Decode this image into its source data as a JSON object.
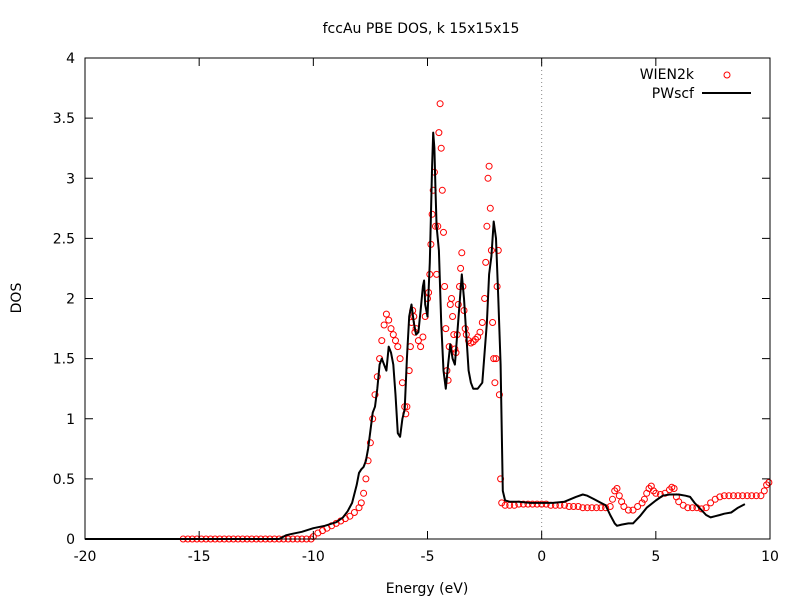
{
  "chart_data": {
    "type": "line",
    "title": "fccAu PBE DOS, k 15x15x15",
    "xlabel": "Energy (eV)",
    "ylabel": "DOS",
    "xlim": [
      -20,
      10
    ],
    "ylim": [
      0,
      4
    ],
    "xticks": [
      -20,
      -15,
      -10,
      -5,
      0,
      5,
      10
    ],
    "yticks": [
      0,
      0.5,
      1,
      1.5,
      2,
      2.5,
      3,
      3.5,
      4
    ],
    "xtick_labels": [
      "-20",
      "-15",
      "-10",
      "-5",
      "0",
      "5",
      "10"
    ],
    "ytick_labels": [
      "0",
      "0.5",
      "1",
      "1.5",
      "2",
      "2.5",
      "3",
      "3.5",
      "4"
    ],
    "grid": false,
    "fermi_level_line_x": 0,
    "legend_position": "top-right",
    "series": [
      {
        "name": "WIEN2k",
        "style": "points",
        "marker": "open-circle",
        "color": "#ff0000",
        "points": [
          [
            -15.7,
            0.0
          ],
          [
            -15.5,
            0.0
          ],
          [
            -15.3,
            0.0
          ],
          [
            -15.1,
            0.0
          ],
          [
            -14.9,
            0.0
          ],
          [
            -14.7,
            0.0
          ],
          [
            -14.5,
            0.0
          ],
          [
            -14.3,
            0.0
          ],
          [
            -14.1,
            0.0
          ],
          [
            -13.9,
            0.0
          ],
          [
            -13.7,
            0.0
          ],
          [
            -13.5,
            0.0
          ],
          [
            -13.3,
            0.0
          ],
          [
            -13.1,
            0.0
          ],
          [
            -12.9,
            0.0
          ],
          [
            -12.7,
            0.0
          ],
          [
            -12.5,
            0.0
          ],
          [
            -12.3,
            0.0
          ],
          [
            -12.1,
            0.0
          ],
          [
            -11.9,
            0.0
          ],
          [
            -11.7,
            0.0
          ],
          [
            -11.5,
            0.0
          ],
          [
            -11.3,
            0.0
          ],
          [
            -11.1,
            0.0
          ],
          [
            -10.9,
            0.0
          ],
          [
            -10.7,
            0.0
          ],
          [
            -10.5,
            0.0
          ],
          [
            -10.3,
            0.0
          ],
          [
            -10.1,
            0.0
          ],
          [
            -10.0,
            0.02
          ],
          [
            -9.8,
            0.05
          ],
          [
            -9.6,
            0.07
          ],
          [
            -9.4,
            0.09
          ],
          [
            -9.2,
            0.11
          ],
          [
            -9.0,
            0.13
          ],
          [
            -8.8,
            0.15
          ],
          [
            -8.6,
            0.17
          ],
          [
            -8.4,
            0.19
          ],
          [
            -8.2,
            0.22
          ],
          [
            -8.0,
            0.26
          ],
          [
            -7.9,
            0.3
          ],
          [
            -7.8,
            0.38
          ],
          [
            -7.7,
            0.5
          ],
          [
            -7.6,
            0.65
          ],
          [
            -7.5,
            0.8
          ],
          [
            -7.4,
            1.0
          ],
          [
            -7.3,
            1.2
          ],
          [
            -7.2,
            1.35
          ],
          [
            -7.1,
            1.5
          ],
          [
            -7.0,
            1.65
          ],
          [
            -6.9,
            1.78
          ],
          [
            -6.8,
            1.87
          ],
          [
            -6.7,
            1.82
          ],
          [
            -6.6,
            1.75
          ],
          [
            -6.5,
            1.7
          ],
          [
            -6.4,
            1.65
          ],
          [
            -6.3,
            1.6
          ],
          [
            -6.2,
            1.5
          ],
          [
            -6.1,
            1.3
          ],
          [
            -6.0,
            1.1
          ],
          [
            -5.95,
            1.04
          ],
          [
            -5.9,
            1.1
          ],
          [
            -5.8,
            1.4
          ],
          [
            -5.75,
            1.6
          ],
          [
            -5.7,
            1.8
          ],
          [
            -5.65,
            1.9
          ],
          [
            -5.6,
            1.85
          ],
          [
            -5.55,
            1.72
          ],
          [
            -5.5,
            1.75
          ],
          [
            -5.4,
            1.65
          ],
          [
            -5.3,
            1.6
          ],
          [
            -5.2,
            1.68
          ],
          [
            -5.1,
            1.85
          ],
          [
            -5.0,
            2.0
          ],
          [
            -4.95,
            2.05
          ],
          [
            -4.9,
            2.2
          ],
          [
            -4.85,
            2.45
          ],
          [
            -4.8,
            2.7
          ],
          [
            -4.75,
            2.9
          ],
          [
            -4.7,
            3.05
          ],
          [
            -4.65,
            2.6
          ],
          [
            -4.6,
            2.2
          ],
          [
            -4.55,
            2.6
          ],
          [
            -4.5,
            3.38
          ],
          [
            -4.45,
            3.62
          ],
          [
            -4.4,
            3.25
          ],
          [
            -4.35,
            2.9
          ],
          [
            -4.3,
            2.55
          ],
          [
            -4.25,
            2.1
          ],
          [
            -4.2,
            1.75
          ],
          [
            -4.15,
            1.4
          ],
          [
            -4.1,
            1.32
          ],
          [
            -4.05,
            1.6
          ],
          [
            -4.0,
            1.95
          ],
          [
            -3.95,
            2.0
          ],
          [
            -3.9,
            1.85
          ],
          [
            -3.85,
            1.7
          ],
          [
            -3.8,
            1.58
          ],
          [
            -3.75,
            1.55
          ],
          [
            -3.7,
            1.7
          ],
          [
            -3.65,
            1.95
          ],
          [
            -3.6,
            2.1
          ],
          [
            -3.55,
            2.25
          ],
          [
            -3.5,
            2.38
          ],
          [
            -3.45,
            2.1
          ],
          [
            -3.4,
            1.9
          ],
          [
            -3.35,
            1.75
          ],
          [
            -3.3,
            1.7
          ],
          [
            -3.2,
            1.65
          ],
          [
            -3.1,
            1.63
          ],
          [
            -3.0,
            1.64
          ],
          [
            -2.9,
            1.66
          ],
          [
            -2.8,
            1.68
          ],
          [
            -2.7,
            1.72
          ],
          [
            -2.6,
            1.8
          ],
          [
            -2.5,
            2.0
          ],
          [
            -2.45,
            2.3
          ],
          [
            -2.4,
            2.6
          ],
          [
            -2.35,
            3.0
          ],
          [
            -2.3,
            3.1
          ],
          [
            -2.25,
            2.75
          ],
          [
            -2.2,
            2.4
          ],
          [
            -2.15,
            1.8
          ],
          [
            -2.1,
            1.5
          ],
          [
            -2.05,
            1.3
          ],
          [
            -2.0,
            1.5
          ],
          [
            -1.95,
            2.1
          ],
          [
            -1.9,
            2.4
          ],
          [
            -1.85,
            1.2
          ],
          [
            -1.8,
            0.5
          ],
          [
            -1.75,
            0.3
          ],
          [
            -1.6,
            0.28
          ],
          [
            -1.4,
            0.28
          ],
          [
            -1.2,
            0.28
          ],
          [
            -1.0,
            0.29
          ],
          [
            -0.8,
            0.29
          ],
          [
            -0.6,
            0.29
          ],
          [
            -0.4,
            0.29
          ],
          [
            -0.2,
            0.29
          ],
          [
            0.0,
            0.29
          ],
          [
            0.2,
            0.29
          ],
          [
            0.4,
            0.28
          ],
          [
            0.6,
            0.28
          ],
          [
            0.8,
            0.28
          ],
          [
            1.0,
            0.28
          ],
          [
            1.2,
            0.27
          ],
          [
            1.4,
            0.27
          ],
          [
            1.6,
            0.27
          ],
          [
            1.8,
            0.26
          ],
          [
            2.0,
            0.26
          ],
          [
            2.2,
            0.26
          ],
          [
            2.4,
            0.26
          ],
          [
            2.6,
            0.26
          ],
          [
            2.8,
            0.26
          ],
          [
            3.0,
            0.27
          ],
          [
            3.1,
            0.33
          ],
          [
            3.2,
            0.4
          ],
          [
            3.3,
            0.42
          ],
          [
            3.4,
            0.36
          ],
          [
            3.5,
            0.31
          ],
          [
            3.6,
            0.27
          ],
          [
            3.8,
            0.24
          ],
          [
            4.0,
            0.24
          ],
          [
            4.2,
            0.27
          ],
          [
            4.4,
            0.3
          ],
          [
            4.5,
            0.33
          ],
          [
            4.6,
            0.38
          ],
          [
            4.7,
            0.42
          ],
          [
            4.8,
            0.44
          ],
          [
            4.9,
            0.4
          ],
          [
            5.0,
            0.38
          ],
          [
            5.2,
            0.37
          ],
          [
            5.4,
            0.38
          ],
          [
            5.6,
            0.41
          ],
          [
            5.7,
            0.43
          ],
          [
            5.8,
            0.42
          ],
          [
            5.9,
            0.35
          ],
          [
            6.0,
            0.31
          ],
          [
            6.2,
            0.28
          ],
          [
            6.4,
            0.26
          ],
          [
            6.6,
            0.26
          ],
          [
            6.8,
            0.26
          ],
          [
            7.0,
            0.25
          ],
          [
            7.2,
            0.26
          ],
          [
            7.4,
            0.3
          ],
          [
            7.6,
            0.33
          ],
          [
            7.8,
            0.35
          ],
          [
            8.0,
            0.36
          ],
          [
            8.2,
            0.36
          ],
          [
            8.4,
            0.36
          ],
          [
            8.6,
            0.36
          ],
          [
            8.8,
            0.36
          ],
          [
            9.0,
            0.36
          ],
          [
            9.2,
            0.36
          ],
          [
            9.4,
            0.36
          ],
          [
            9.6,
            0.36
          ],
          [
            9.75,
            0.4
          ],
          [
            9.85,
            0.45
          ],
          [
            9.95,
            0.47
          ]
        ]
      },
      {
        "name": "PWscf",
        "style": "line",
        "color": "#000000",
        "points": [
          [
            -20.0,
            0.0
          ],
          [
            -15.0,
            0.0
          ],
          [
            -12.0,
            0.0
          ],
          [
            -11.5,
            0.0
          ],
          [
            -11.2,
            0.03
          ],
          [
            -11.0,
            0.04
          ],
          [
            -10.5,
            0.06
          ],
          [
            -10.0,
            0.09
          ],
          [
            -9.5,
            0.11
          ],
          [
            -9.0,
            0.14
          ],
          [
            -8.7,
            0.18
          ],
          [
            -8.5,
            0.23
          ],
          [
            -8.3,
            0.3
          ],
          [
            -8.1,
            0.45
          ],
          [
            -8.0,
            0.55
          ],
          [
            -7.9,
            0.58
          ],
          [
            -7.8,
            0.6
          ],
          [
            -7.7,
            0.65
          ],
          [
            -7.6,
            0.75
          ],
          [
            -7.5,
            0.9
          ],
          [
            -7.4,
            1.05
          ],
          [
            -7.3,
            1.1
          ],
          [
            -7.2,
            1.25
          ],
          [
            -7.1,
            1.45
          ],
          [
            -7.0,
            1.5
          ],
          [
            -6.9,
            1.45
          ],
          [
            -6.8,
            1.4
          ],
          [
            -6.7,
            1.6
          ],
          [
            -6.6,
            1.55
          ],
          [
            -6.5,
            1.45
          ],
          [
            -6.4,
            1.2
          ],
          [
            -6.3,
            0.88
          ],
          [
            -6.2,
            0.85
          ],
          [
            -6.1,
            1.0
          ],
          [
            -6.0,
            1.08
          ],
          [
            -5.9,
            1.5
          ],
          [
            -5.8,
            1.85
          ],
          [
            -5.7,
            1.95
          ],
          [
            -5.6,
            1.8
          ],
          [
            -5.5,
            1.7
          ],
          [
            -5.4,
            1.72
          ],
          [
            -5.3,
            1.9
          ],
          [
            -5.2,
            2.1
          ],
          [
            -5.15,
            2.15
          ],
          [
            -5.1,
            1.95
          ],
          [
            -5.0,
            1.85
          ],
          [
            -4.9,
            2.3
          ],
          [
            -4.8,
            3.1
          ],
          [
            -4.75,
            3.38
          ],
          [
            -4.7,
            3.25
          ],
          [
            -4.65,
            2.9
          ],
          [
            -4.6,
            2.6
          ],
          [
            -4.5,
            2.4
          ],
          [
            -4.4,
            1.8
          ],
          [
            -4.3,
            1.4
          ],
          [
            -4.2,
            1.25
          ],
          [
            -4.1,
            1.45
          ],
          [
            -4.0,
            1.62
          ],
          [
            -3.9,
            1.5
          ],
          [
            -3.8,
            1.45
          ],
          [
            -3.7,
            1.7
          ],
          [
            -3.6,
            1.95
          ],
          [
            -3.5,
            2.2
          ],
          [
            -3.4,
            2.0
          ],
          [
            -3.3,
            1.7
          ],
          [
            -3.2,
            1.4
          ],
          [
            -3.1,
            1.3
          ],
          [
            -3.0,
            1.25
          ],
          [
            -2.8,
            1.25
          ],
          [
            -2.6,
            1.3
          ],
          [
            -2.5,
            1.55
          ],
          [
            -2.4,
            1.8
          ],
          [
            -2.3,
            2.2
          ],
          [
            -2.2,
            2.35
          ],
          [
            -2.1,
            2.64
          ],
          [
            -2.0,
            2.5
          ],
          [
            -1.9,
            2.0
          ],
          [
            -1.8,
            1.45
          ],
          [
            -1.7,
            0.4
          ],
          [
            -1.6,
            0.32
          ],
          [
            -1.4,
            0.31
          ],
          [
            -1.0,
            0.31
          ],
          [
            -0.5,
            0.3
          ],
          [
            0.0,
            0.3
          ],
          [
            0.5,
            0.3
          ],
          [
            1.0,
            0.31
          ],
          [
            1.5,
            0.35
          ],
          [
            1.8,
            0.37
          ],
          [
            2.0,
            0.36
          ],
          [
            2.3,
            0.33
          ],
          [
            2.6,
            0.3
          ],
          [
            2.8,
            0.28
          ],
          [
            3.0,
            0.2
          ],
          [
            3.2,
            0.13
          ],
          [
            3.3,
            0.11
          ],
          [
            3.5,
            0.12
          ],
          [
            3.8,
            0.13
          ],
          [
            4.0,
            0.13
          ],
          [
            4.3,
            0.19
          ],
          [
            4.6,
            0.26
          ],
          [
            5.0,
            0.32
          ],
          [
            5.3,
            0.36
          ],
          [
            5.6,
            0.37
          ],
          [
            6.0,
            0.37
          ],
          [
            6.3,
            0.36
          ],
          [
            6.5,
            0.35
          ],
          [
            6.7,
            0.3
          ],
          [
            7.0,
            0.24
          ],
          [
            7.2,
            0.2
          ],
          [
            7.4,
            0.18
          ],
          [
            7.6,
            0.19
          ],
          [
            7.8,
            0.2
          ],
          [
            8.0,
            0.21
          ],
          [
            8.3,
            0.22
          ],
          [
            8.6,
            0.26
          ],
          [
            8.9,
            0.29
          ]
        ]
      }
    ]
  }
}
